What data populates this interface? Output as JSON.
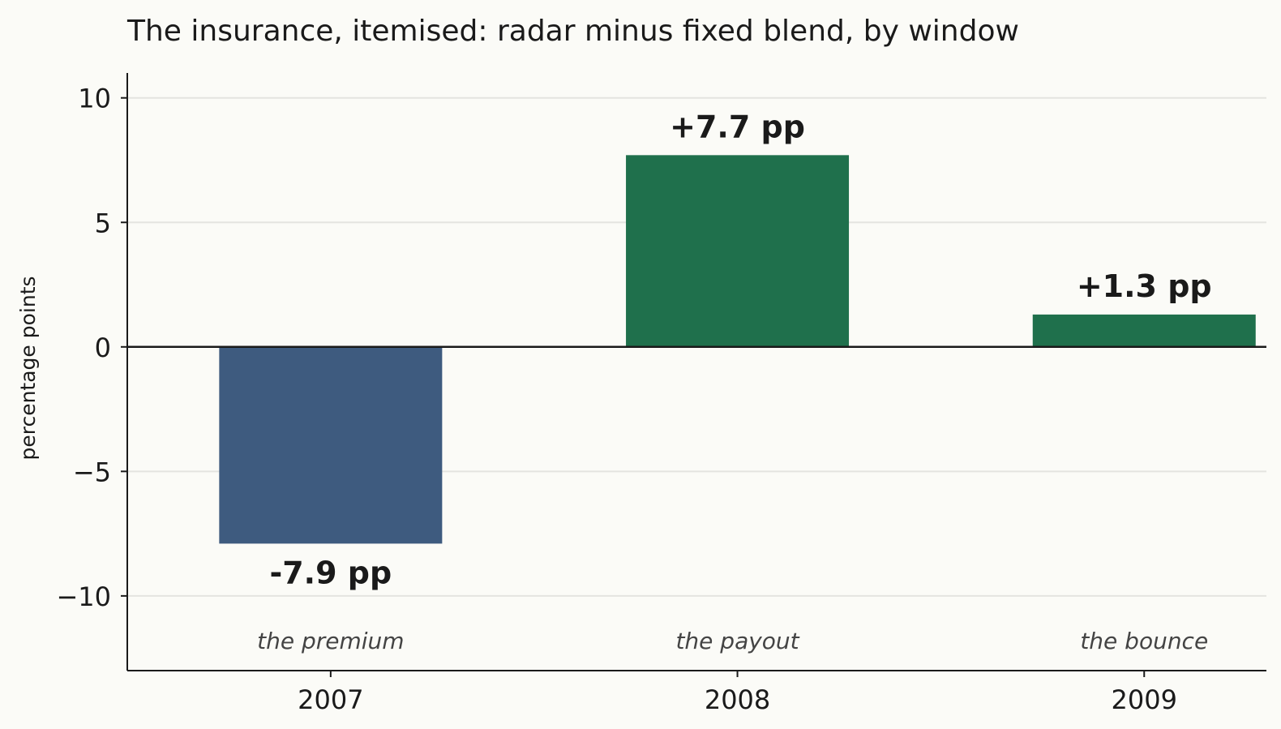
{
  "chart_data": {
    "type": "bar",
    "title": "The insurance, itemised: radar minus fixed blend, by window",
    "xlabel": "",
    "ylabel": "percentage points",
    "categories": [
      "2007",
      "2008",
      "2009"
    ],
    "values": [
      -7.9,
      7.7,
      1.3
    ],
    "value_labels": [
      "-7.9 pp",
      "+7.7 pp",
      "+1.3 pp"
    ],
    "annotations": [
      "the premium",
      "the payout",
      "the bounce"
    ],
    "ylim": [
      -13,
      11
    ],
    "yticks": [
      10,
      5,
      0,
      -5,
      -10
    ],
    "ytick_labels": [
      "10",
      "5",
      "0",
      "−5",
      "−10"
    ],
    "grid": "horizontal",
    "legend": "none",
    "colors": {
      "negative": "#3e5b7f",
      "positive": "#1f704c",
      "grid": "#e4e4e0",
      "axis": "#1a1a1a",
      "background": "#fbfbf7"
    }
  }
}
